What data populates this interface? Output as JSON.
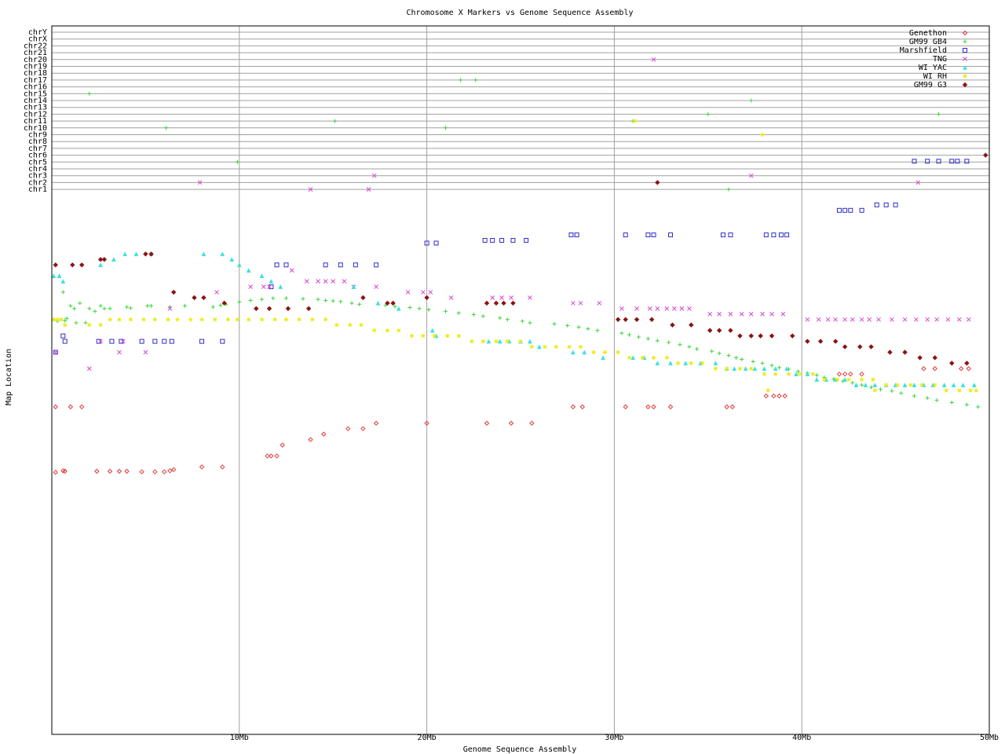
{
  "chart_data": {
    "type": "scatter",
    "title": "Chromosome X Markers vs Genome Sequence Assembly",
    "xlabel": "Genome Sequence Assembly",
    "ylabel": "Map Location",
    "xlim": [
      0,
      50
    ],
    "x_ticks": [
      {
        "value": 10,
        "label": "10Mb"
      },
      {
        "value": 20,
        "label": "20Mb"
      },
      {
        "value": 30,
        "label": "30Mb"
      },
      {
        "value": 40,
        "label": "40Mb"
      },
      {
        "value": 50,
        "label": "50Mb"
      }
    ],
    "chromosomes": [
      "chrY",
      "chrX",
      "chr22",
      "chr21",
      "chr20",
      "chr19",
      "chr18",
      "chr17",
      "chr16",
      "chr15",
      "chr14",
      "chr13",
      "chr12",
      "chr11",
      "chr10",
      "chr9",
      "chr8",
      "chr7",
      "chr6",
      "chr5",
      "chr4",
      "chr3",
      "chr2",
      "chr1"
    ],
    "map_ylim": [
      0,
      100
    ],
    "grid": true,
    "legend_position": "top-right",
    "series": [
      {
        "name": "Genethon",
        "color": "#e03c3c",
        "symbol": "diamond",
        "x": [
          0.2,
          0.6,
          0.7,
          0.2,
          1.0,
          1.6,
          2.4,
          3.1,
          3.6,
          4.0,
          4.8,
          5.5,
          6.0,
          6.3,
          6.5,
          8.0,
          9.1,
          11.5,
          11.7,
          12.0,
          12.3,
          13.8,
          14.5,
          15.8,
          16.6,
          17.3,
          20.0,
          23.2,
          24.5,
          25.6,
          27.8,
          28.3,
          30.6,
          31.8,
          32.1,
          33.0,
          36.0,
          36.3,
          38.1,
          38.5,
          38.8,
          39.1,
          42.0,
          42.3,
          42.6,
          43.2,
          46.5,
          47.1,
          48.5,
          48.9
        ],
        "y": [
          52,
          51.7,
          51.8,
          40,
          40,
          40,
          51.8,
          51.8,
          51.8,
          51.8,
          51.9,
          51.9,
          51.9,
          51.7,
          51.5,
          51,
          51,
          49,
          49,
          49,
          47,
          46,
          45,
          44,
          44,
          43,
          43,
          43,
          43,
          43,
          40,
          40,
          40,
          40,
          40,
          40,
          40,
          40,
          38,
          38,
          38,
          38,
          34,
          34,
          34,
          34,
          33,
          33,
          33,
          33
        ]
      },
      {
        "name": "GM99 GB4",
        "color": "#3cd43c",
        "symbol": "plus",
        "x": [
          0.1,
          0.3,
          0.5,
          0.7,
          0.8,
          1.0,
          1.2,
          1.5,
          2.0,
          2.3,
          2.6,
          2.8,
          3.1,
          4.0,
          4.2,
          5.1,
          5.3,
          6.3,
          7.1,
          8.6,
          9.0,
          9.3,
          10.0,
          10.6,
          11.2,
          11.8,
          12.5,
          13.4,
          14.2,
          14.6,
          15.0,
          15.4,
          16.0,
          16.4,
          17.8,
          18.3,
          19.1,
          19.6,
          20.1,
          21.0,
          21.7,
          22.5,
          23.0,
          23.9,
          24.3,
          25.1,
          25.5,
          26.8,
          27.5,
          28.1,
          28.6,
          29.1,
          30.4,
          30.8,
          31.3,
          31.8,
          32.3,
          32.9,
          33.5,
          34.0,
          34.4,
          35.2,
          35.6,
          36.1,
          36.5,
          36.8,
          37.4,
          37.9,
          38.4,
          38.8,
          39.3,
          39.8,
          40.3,
          40.8,
          41.2,
          41.7,
          42.2,
          42.7,
          43.2,
          43.7,
          44.2,
          44.8,
          45.3,
          46.0,
          46.7,
          47.2,
          48.0,
          48.8,
          49.4,
          1.3,
          1.8,
          0.6
        ],
        "y": [
          24,
          24.3,
          24.0,
          24.2,
          23.8,
          21.5,
          22,
          21.0,
          22,
          22.5,
          21.5,
          22,
          22,
          21.7,
          21.9,
          21.5,
          21.5,
          21.7,
          21.5,
          21.7,
          21.4,
          21.2,
          20.8,
          20.5,
          20.3,
          20.1,
          20.1,
          20.2,
          20.3,
          20.5,
          20.6,
          20.7,
          21.0,
          21.2,
          21.4,
          21.6,
          21.8,
          22.0,
          22.2,
          22.5,
          22.8,
          23.1,
          23.4,
          23.7,
          24.0,
          24.3,
          24.6,
          24.8,
          25.1,
          25.4,
          25.7,
          26.0,
          26.5,
          26.8,
          27.2,
          27.5,
          27.9,
          28.2,
          28.6,
          29.0,
          29.4,
          29.8,
          30.2,
          30.6,
          31.0,
          31.3,
          31.7,
          32.0,
          32.4,
          32.8,
          33.1,
          33.5,
          33.8,
          34.2,
          34.6,
          34.9,
          35.3,
          35.6,
          36.0,
          36.4,
          36.8,
          37.1,
          37.5,
          38.0,
          38.4,
          38.8,
          39.2,
          39.6,
          40.0,
          24.6,
          24.6,
          19.0
        ],
        "xd": [
          2.0,
          6.1,
          9.9,
          15.1,
          21.0,
          21.8,
          22.6,
          31.0,
          35.0,
          37.3,
          47.3,
          36.1
        ],
        "yd": [
          "chr15",
          "chr10",
          "chr5",
          "chr11",
          "chr10",
          "chr17",
          "chr17",
          "chr11",
          "chr12",
          "chr14",
          "chr12",
          "chr1"
        ]
      },
      {
        "name": "Marshfield",
        "color": "#2e2ec8",
        "symbol": "square",
        "x": [
          0.2,
          0.6,
          0.7,
          2.5,
          3.2,
          3.7,
          4.8,
          5.5,
          6.0,
          6.4,
          8.0,
          9.1,
          11.7,
          12.0,
          12.5,
          14.6,
          15.4,
          16.2,
          17.3,
          20.0,
          20.5,
          23.1,
          23.5,
          24.0,
          24.6,
          25.3,
          27.7,
          28.0,
          30.6,
          31.8,
          32.1,
          33.0,
          35.8,
          36.2,
          38.1,
          38.5,
          38.9,
          39.2,
          42.0,
          42.3,
          42.6,
          43.2,
          44.0,
          44.5,
          45.0,
          46.0,
          46.7,
          47.3,
          48.0,
          48.3,
          48.8
        ],
        "y": [
          30,
          27,
          28,
          28,
          28,
          28,
          28,
          28,
          28,
          28,
          28,
          28,
          18,
          14,
          14,
          14,
          14,
          14,
          14,
          10,
          10,
          9.5,
          9.5,
          9.5,
          9.5,
          9.5,
          8.5,
          8.5,
          8.5,
          8.5,
          8.5,
          8.5,
          8.5,
          8.5,
          8.5,
          8.5,
          8.5,
          8.5,
          4,
          4,
          4,
          4,
          3,
          3,
          3,
          -5,
          -5,
          -5,
          -5,
          -5,
          -5
        ]
      },
      {
        "name": "TNG",
        "color": "#d448d4",
        "symbol": "x",
        "x": [
          0.2,
          2.0,
          2.6,
          3.6,
          3.8,
          5.0,
          6.3,
          8.8,
          10.6,
          11.3,
          11.6,
          12.8,
          13.6,
          14.2,
          14.6,
          15.0,
          15.6,
          16.1,
          17.3,
          19.0,
          19.8,
          20.2,
          21.3,
          23.5,
          24.0,
          24.5,
          25.5,
          27.8,
          28.2,
          29.2,
          30.4,
          31.2,
          31.9,
          32.3,
          32.8,
          33.2,
          33.6,
          34.0,
          35.1,
          35.6,
          36.2,
          36.8,
          37.3,
          37.9,
          38.4,
          39.0,
          40.3,
          40.9,
          41.4,
          41.8,
          42.3,
          42.7,
          43.2,
          43.6,
          44.1,
          44.8,
          45.5,
          46.1,
          46.7,
          47.2,
          47.8,
          48.4,
          48.9
        ],
        "y": [
          30,
          33,
          28,
          30,
          28,
          30,
          22,
          19,
          18,
          18,
          18,
          15,
          17,
          17,
          17,
          17,
          17,
          18,
          18,
          19,
          19,
          19,
          20,
          20,
          20,
          20,
          20,
          21,
          21,
          21,
          22,
          22,
          22,
          22,
          22,
          22,
          22,
          22,
          23,
          23,
          23,
          23,
          23,
          23,
          23,
          23,
          24,
          24,
          24,
          24,
          24,
          24,
          24,
          24,
          24,
          24,
          24,
          24,
          24,
          24,
          24,
          24,
          24
        ],
        "xd": [
          7.9,
          13.8,
          17.2,
          16.9,
          32.1,
          37.3,
          46.2
        ],
        "yd": [
          "chr2",
          "chr1",
          "chr3",
          "chr1",
          "chr20",
          "chr3",
          "chr2"
        ]
      },
      {
        "name": "WI YAC",
        "color": "#3ce0e0",
        "symbol": "triangle",
        "x": [
          0.1,
          0.4,
          0.6,
          2.6,
          3.3,
          3.9,
          4.5,
          5.3,
          8.1,
          9.1,
          9.6,
          10.0,
          10.5,
          11.2,
          11.7,
          12.2,
          16.1,
          17.4,
          18.5,
          20.3,
          20.5,
          23.3,
          23.9,
          24.4,
          25.0,
          25.5,
          26.0,
          27.8,
          28.4,
          29.4,
          31.0,
          31.6,
          32.3,
          33.0,
          33.8,
          34.6,
          35.4,
          36.0,
          36.4,
          37.0,
          37.5,
          38.0,
          38.6,
          39.2,
          39.7,
          40.3,
          40.8,
          41.3,
          41.8,
          42.3,
          42.9,
          43.4,
          43.9,
          44.5,
          45.0,
          45.5,
          46.0,
          46.5,
          47.0,
          47.6,
          48.1,
          48.6,
          49.2
        ],
        "y": [
          16,
          16,
          17,
          14,
          13,
          12,
          12,
          12,
          12,
          12,
          13,
          14,
          15,
          16,
          17,
          18,
          18,
          21,
          22,
          26,
          27,
          28,
          28,
          28,
          28,
          28,
          29,
          30,
          30,
          31,
          31,
          31,
          32,
          32,
          32,
          32,
          32,
          33,
          33,
          33,
          33,
          33,
          33,
          33,
          34,
          34,
          35,
          35,
          35,
          35,
          36,
          36,
          36,
          36,
          36,
          36,
          36,
          36,
          36,
          36,
          36,
          36,
          36
        ]
      },
      {
        "name": "WI RH",
        "color": "#ecec14",
        "symbol": "asterisk",
        "x": [
          0.1,
          0.3,
          0.5,
          0.7,
          2.0,
          2.6,
          3.1,
          3.6,
          4.2,
          4.9,
          5.5,
          6.2,
          6.7,
          7.4,
          8.0,
          8.7,
          9.4,
          9.9,
          10.5,
          11.2,
          11.9,
          12.5,
          13.2,
          13.9,
          14.6,
          15.2,
          15.9,
          16.5,
          17.2,
          17.9,
          18.5,
          19.2,
          19.8,
          20.4,
          21.1,
          21.7,
          22.4,
          23.0,
          23.7,
          24.3,
          25.0,
          25.6,
          26.3,
          26.9,
          27.6,
          28.2,
          28.9,
          29.5,
          30.2,
          30.8,
          31.5,
          32.1,
          32.8,
          33.4,
          34.1,
          34.7,
          35.4,
          36.0,
          36.7,
          37.3,
          38.0,
          38.6,
          39.3,
          39.9,
          40.6,
          41.2,
          41.9,
          42.5,
          43.2,
          43.8,
          44.5,
          45.1,
          45.8,
          46.4,
          47.1,
          47.7,
          48.4,
          49.0,
          38.2,
          43.9,
          49.3
        ],
        "y": [
          24,
          24,
          24,
          25,
          25,
          25,
          24,
          24,
          24,
          24,
          24,
          24,
          24,
          24,
          24,
          24,
          24,
          24,
          24,
          24,
          24,
          24,
          24,
          24,
          24,
          25,
          25,
          25,
          26,
          26,
          26,
          27,
          27,
          27,
          27,
          27,
          28,
          28,
          28,
          28,
          28,
          29,
          29,
          29,
          29,
          29,
          30,
          30,
          30,
          31,
          31,
          31,
          31,
          32,
          32,
          32,
          33,
          33,
          33,
          33,
          34,
          34,
          34,
          34,
          34,
          35,
          35,
          35,
          35,
          35,
          36,
          36,
          36,
          36,
          36,
          37,
          37,
          37,
          37,
          37,
          37
        ],
        "xd": [
          31.1,
          37.9
        ],
        "yd": [
          "chr11",
          "chr9"
        ]
      },
      {
        "name": "GM99 G3",
        "color": "#8c1414",
        "symbol": "diamond-filled",
        "x": [
          0.2,
          1.1,
          1.6,
          2.6,
          2.8,
          5.0,
          5.3,
          6.5,
          7.6,
          8.1,
          9.2,
          10.9,
          11.6,
          12.6,
          13.7,
          16.6,
          17.9,
          18.2,
          20.0,
          23.2,
          23.7,
          24.1,
          24.6,
          30.2,
          30.6,
          31.2,
          32.0,
          33.1,
          34.1,
          35.1,
          35.6,
          36.2,
          36.7,
          37.3,
          37.8,
          38.4,
          39.5,
          40.3,
          41.0,
          41.8,
          42.3,
          43.1,
          43.7,
          44.7,
          45.5,
          46.3,
          47.1,
          48.0,
          48.8
        ],
        "y": [
          14,
          14,
          14,
          13,
          13,
          12,
          12,
          19,
          20,
          20,
          21,
          22,
          22,
          22,
          22,
          20,
          21,
          21,
          20,
          21,
          21,
          21,
          21,
          24,
          24,
          24,
          24,
          25,
          25,
          26,
          26,
          26,
          27,
          27,
          27,
          27,
          27,
          28,
          28,
          28,
          29,
          29,
          29,
          30,
          30,
          31,
          31,
          32,
          32
        ],
        "xd": [
          32.3,
          49.8
        ],
        "yd": [
          "chr2",
          "chr6"
        ]
      }
    ]
  }
}
